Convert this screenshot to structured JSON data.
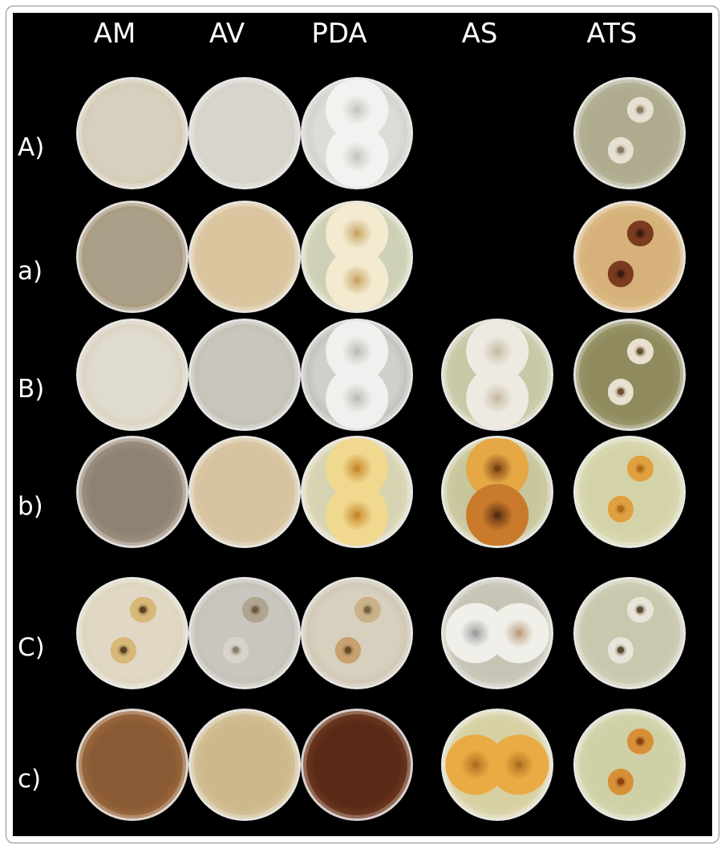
{
  "columns": [
    "AM",
    "AV",
    "PDA",
    "AS",
    "ATS"
  ],
  "rows": [
    {
      "label": "A)",
      "plates": [
        {
          "base": "#d8d0bf",
          "edge": "#cbbd9e",
          "colonies": []
        },
        {
          "base": "#d9d6cf",
          "edge": "#cfcac0",
          "colonies": []
        },
        {
          "base": "#dcdcd8",
          "edge": "#b8b6ac",
          "colonies": [
            {
              "color": "#f2f2f0",
              "center": "#c8c8c0"
            },
            {
              "color": "#f2f2f0",
              "center": "#c8c8c0"
            }
          ],
          "layout": "pair-fill"
        },
        null,
        {
          "base": "#aeab8e",
          "edge": "#c9c6b0",
          "colonies": [
            {
              "color": "#e6e0d2",
              "center": "#8a7a60"
            },
            {
              "color": "#e6e0d2",
              "center": "#8a7a60"
            }
          ],
          "layout": "small-pair"
        }
      ]
    },
    {
      "label": "a)",
      "plates": [
        {
          "base": "#a9a08a",
          "edge": "#b08e6a",
          "colonies": []
        },
        {
          "base": "#d9c49e",
          "edge": "#e0cfad",
          "colonies": []
        },
        {
          "base": "#cdd0b6",
          "edge": "#e2dcc0",
          "colonies": [
            {
              "color": "#f3ead0",
              "center": "#c9a866"
            },
            {
              "color": "#f3ead0",
              "center": "#c9a866"
            }
          ],
          "layout": "pair-fill"
        },
        null,
        {
          "base": "#d6b27a",
          "edge": "#e6c997",
          "colonies": [
            {
              "color": "#7a3b1e",
              "center": "#3a1c10"
            },
            {
              "color": "#7a3b1e",
              "center": "#3a1c10"
            }
          ],
          "layout": "small-pair"
        }
      ]
    },
    {
      "label": "B)",
      "plates": [
        {
          "base": "#e0dbcf",
          "edge": "#cdbd99",
          "colonies": []
        },
        {
          "base": "#c9c6bd",
          "edge": "#bab5aa",
          "colonies": []
        },
        {
          "base": "#cfcfcb",
          "edge": "#9e9d95",
          "colonies": [
            {
              "color": "#f0f0ee",
              "center": "#c0c0b8"
            },
            {
              "color": "#f0f0ee",
              "center": "#c0c0b8"
            }
          ],
          "layout": "pair-fill"
        },
        {
          "base": "#c8c7a6",
          "edge": "#dad8c2",
          "colonies": [
            {
              "color": "#eeeae2",
              "center": "#c8bda5"
            },
            {
              "color": "#eeeae2",
              "center": "#c8bda5"
            }
          ],
          "layout": "pair-fill"
        },
        {
          "base": "#8f8b5e",
          "edge": "#b7b38f",
          "colonies": [
            {
              "color": "#e8e0d0",
              "center": "#6a5030"
            },
            {
              "color": "#e8e0d0",
              "center": "#6a5030"
            }
          ],
          "layout": "small-pair"
        }
      ]
    },
    {
      "label": "b)",
      "plates": [
        {
          "base": "#8e8274",
          "edge": "#c9b6a0",
          "colonies": []
        },
        {
          "base": "#d6c29e",
          "edge": "#dfcfb0",
          "colonies": []
        },
        {
          "base": "#d6d3b2",
          "edge": "#e7e1c8",
          "colonies": [
            {
              "color": "#f0d88e",
              "center": "#c98a2a"
            },
            {
              "color": "#f0d88e",
              "center": "#c98a2a"
            }
          ],
          "layout": "pair-fill"
        },
        {
          "base": "#c8c69c",
          "edge": "#e0dcc0",
          "colonies": [
            {
              "color": "#e5a844",
              "center": "#7a4014"
            },
            {
              "color": "#c97a2a",
              "center": "#5a2e10"
            }
          ],
          "layout": "pair-fill"
        },
        {
          "base": "#d4d3a8",
          "edge": "#e6e4cc",
          "colonies": [
            {
              "color": "#e0a040",
              "center": "#b06a18"
            },
            {
              "color": "#e0a040",
              "center": "#b06a18"
            }
          ],
          "layout": "small-pair"
        }
      ]
    },
    {
      "label": "C)",
      "plates": [
        {
          "base": "#e0d8c4",
          "edge": "#d6cbb0",
          "colonies": [
            {
              "color": "#d8b878",
              "center": "#5a4020"
            },
            {
              "color": "#d8b878",
              "center": "#5a4020"
            }
          ],
          "layout": "small-pair"
        },
        {
          "base": "#c9c6bf",
          "edge": "#bdb7aa",
          "colonies": [
            {
              "color": "#b0a590",
              "center": "#6a5a40"
            },
            {
              "color": "#d8d4cc",
              "center": "#8a8070"
            }
          ],
          "layout": "small-pair"
        },
        {
          "base": "#d8d0be",
          "edge": "#b8ad98",
          "colonies": [
            {
              "color": "#c9b28a",
              "center": "#7a6040"
            },
            {
              "color": "#c9a070",
              "center": "#6a4a28"
            }
          ],
          "layout": "small-pair"
        },
        {
          "base": "#c6c4b4",
          "edge": "#d8d6cc",
          "colonies": [
            {
              "color": "#f0efea",
              "center": "#a0a0a0"
            },
            {
              "color": "#f0efea",
              "center": "#c0a080"
            }
          ],
          "layout": "side-pair"
        },
        {
          "base": "#c9c7ae",
          "edge": "#dedcc8",
          "colonies": [
            {
              "color": "#e8e4da",
              "center": "#5a4a30"
            },
            {
              "color": "#e8e4da",
              "center": "#5a4a30"
            }
          ],
          "layout": "small-pair"
        }
      ]
    },
    {
      "label": "c)",
      "plates": [
        {
          "base": "#8a5a34",
          "edge": "#c08a50",
          "colonies": []
        },
        {
          "base": "#cdb88a",
          "edge": "#e2d8bc",
          "colonies": []
        },
        {
          "base": "#5a2a18",
          "edge": "#9a5a30",
          "colonies": []
        },
        {
          "base": "#d6d0a2",
          "edge": "#e6e2c6",
          "colonies": [
            {
              "color": "#eaaa44",
              "center": "#b07020"
            },
            {
              "color": "#eaaa44",
              "center": "#b07020"
            }
          ],
          "layout": "side-pair"
        },
        {
          "base": "#cfd0a6",
          "edge": "#e2e2c6",
          "colonies": [
            {
              "color": "#d89038",
              "center": "#8a4010"
            },
            {
              "color": "#d89038",
              "center": "#8a4010"
            }
          ],
          "layout": "small-pair"
        }
      ]
    }
  ]
}
